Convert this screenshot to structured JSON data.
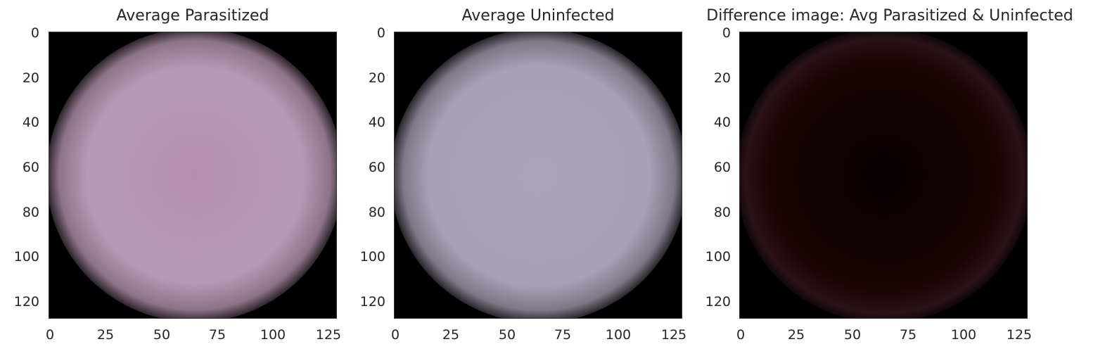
{
  "panels": [
    {
      "title": "Average Parasitized",
      "tone": "#b695b4"
    },
    {
      "title": "Average Uninfected",
      "tone": "#aaa3b8"
    },
    {
      "title": "Difference image: Avg Parasitized & Uninfected",
      "tone": "#1a0406"
    }
  ],
  "y_ticks": [
    "0",
    "20",
    "40",
    "60",
    "80",
    "100",
    "120"
  ],
  "x_ticks": [
    "0",
    "25",
    "50",
    "75",
    "100",
    "125"
  ],
  "axis_extent": [
    0,
    128
  ]
}
